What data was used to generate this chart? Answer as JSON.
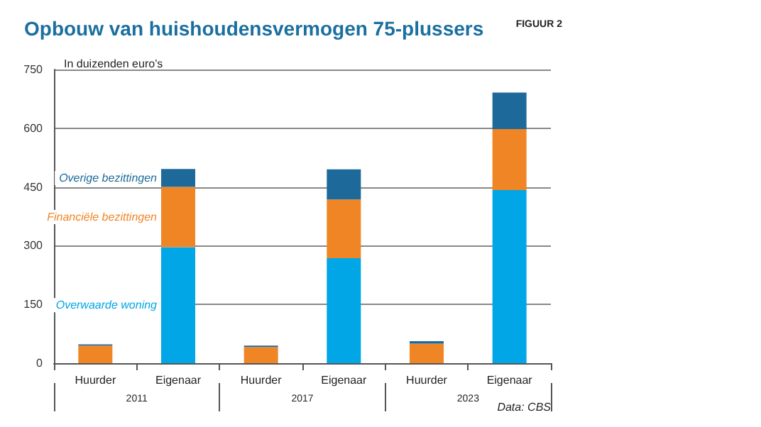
{
  "chart_data": {
    "type": "bar",
    "title": "Opbouw van huishoudensvermogen 75-plussers",
    "ylabel": "In duizenden euro’s",
    "annotations": [
      "FIGUUR 2",
      "2011",
      "2017",
      "2023",
      "Data: CBS"
    ],
    "categories": [
      "Huurder",
      "Eigenaar",
      "Huurder",
      "Eigenaar",
      "Huurder",
      "Eigenaar"
    ],
    "stacked": true,
    "series": [
      {
        "name": "Overwaarde woning",
        "color": "#00a6e6",
        "values": [
          0,
          296,
          0,
          268,
          0,
          442
        ]
      },
      {
        "name": "Financiële bezittingen",
        "color": "#f08526",
        "values": [
          45,
          154,
          41,
          150,
          50,
          156
        ]
      },
      {
        "name": "Overige bezittingen",
        "color": "#1d6a9a",
        "values": [
          3,
          46,
          4,
          77,
          6,
          93
        ]
      }
    ],
    "ylim": [
      0,
      750
    ],
    "yticks": [
      0,
      150,
      300,
      450,
      600,
      750
    ],
    "grid": "y",
    "legend": false
  }
}
